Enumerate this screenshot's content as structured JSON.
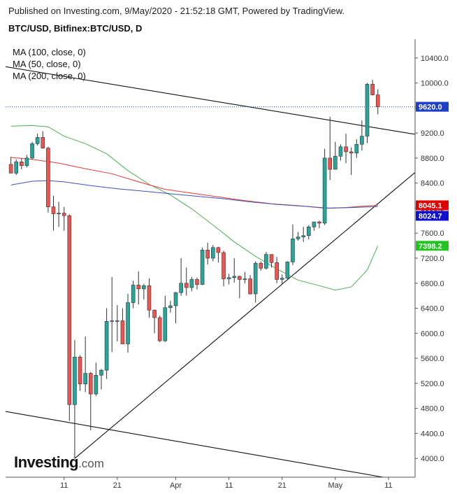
{
  "header": {
    "published": "Published on Investing.com, 9/May/2020 - 21:52:18 GMT, Powered by TradingView.",
    "symbol": "BTC/USD, Bitfinex:BTC/USD, D"
  },
  "legend": {
    "items": [
      "MA (100, close, 0)",
      "MA (50, close, 0)",
      "MA (200, close, 0)"
    ]
  },
  "logo": {
    "main": "Investing",
    "suffix": ".com"
  },
  "colors": {
    "up": "#26a69a",
    "down": "#ef5350",
    "ma50": "#4caf50",
    "ma100": "#e53935",
    "ma200": "#3f51b5",
    "current": "#1e40c8",
    "ma50_tag": "#22c322",
    "ma100_tag": "#e00000",
    "ma200_tag": "#1010d0"
  },
  "chart_data": {
    "type": "candlestick",
    "y_ticks": [
      "10400.0",
      "10000.0",
      "9600.0",
      "9200.0",
      "8800.0",
      "8400.0",
      "8000.0",
      "7600.0",
      "7200.0",
      "6800.0",
      "6400.0",
      "6000.0",
      "5600.0",
      "5200.0",
      "4800.0",
      "4400.0",
      "4000.0"
    ],
    "ylim": [
      3700,
      10700
    ],
    "x_ticks": [
      {
        "label": "11",
        "date": "2020-03-11"
      },
      {
        "label": "21",
        "date": "2020-03-21"
      },
      {
        "label": "Apr",
        "date": "2020-04-01"
      },
      {
        "label": "11",
        "date": "2020-04-11"
      },
      {
        "label": "21",
        "date": "2020-04-21"
      },
      {
        "label": "May",
        "date": "2020-05-01"
      },
      {
        "label": "11",
        "date": "2020-05-11"
      }
    ],
    "xlim": [
      "2020-02-29",
      "2020-05-16"
    ],
    "candles": [
      {
        "date": "2020-03-01",
        "open": 8700,
        "high": 8820,
        "low": 8610,
        "close": 8560
      },
      {
        "date": "2020-03-02",
        "open": 8560,
        "high": 8780,
        "low": 8530,
        "close": 8740
      },
      {
        "date": "2020-03-03",
        "open": 8740,
        "high": 8800,
        "low": 8620,
        "close": 8680
      },
      {
        "date": "2020-03-04",
        "open": 8680,
        "high": 8850,
        "low": 8650,
        "close": 8800
      },
      {
        "date": "2020-03-05",
        "open": 8800,
        "high": 9060,
        "low": 8780,
        "close": 9030
      },
      {
        "date": "2020-03-06",
        "open": 9030,
        "high": 9190,
        "low": 9000,
        "close": 9130
      },
      {
        "date": "2020-03-07",
        "open": 9130,
        "high": 9230,
        "low": 8950,
        "close": 8960
      },
      {
        "date": "2020-03-08",
        "open": 8960,
        "high": 8980,
        "low": 7930,
        "close": 8020
      },
      {
        "date": "2020-03-09",
        "open": 8020,
        "high": 8200,
        "low": 7640,
        "close": 7910
      },
      {
        "date": "2020-03-10",
        "open": 7910,
        "high": 8100,
        "low": 7700,
        "close": 7920
      },
      {
        "date": "2020-03-11",
        "open": 7920,
        "high": 8020,
        "low": 7640,
        "close": 7880
      },
      {
        "date": "2020-03-12",
        "open": 7880,
        "high": 7900,
        "low": 4600,
        "close": 4860
      },
      {
        "date": "2020-03-13",
        "open": 4860,
        "high": 5890,
        "low": 4000,
        "close": 5620
      },
      {
        "date": "2020-03-14",
        "open": 5620,
        "high": 5650,
        "low": 5080,
        "close": 5190
      },
      {
        "date": "2020-03-15",
        "open": 5190,
        "high": 5950,
        "low": 5060,
        "close": 5360
      },
      {
        "date": "2020-03-16",
        "open": 5360,
        "high": 5380,
        "low": 4450,
        "close": 5030
      },
      {
        "date": "2020-03-17",
        "open": 5030,
        "high": 5530,
        "low": 5000,
        "close": 5330
      },
      {
        "date": "2020-03-18",
        "open": 5330,
        "high": 5430,
        "low": 5100,
        "close": 5410
      },
      {
        "date": "2020-03-19",
        "open": 5410,
        "high": 6400,
        "low": 5270,
        "close": 6190
      },
      {
        "date": "2020-03-20",
        "open": 6190,
        "high": 6900,
        "low": 5700,
        "close": 6200
      },
      {
        "date": "2020-03-21",
        "open": 6200,
        "high": 6450,
        "low": 5870,
        "close": 6200
      },
      {
        "date": "2020-03-22",
        "open": 6200,
        "high": 6400,
        "low": 5840,
        "close": 5830
      },
      {
        "date": "2020-03-23",
        "open": 5830,
        "high": 6630,
        "low": 5690,
        "close": 6490
      },
      {
        "date": "2020-03-24",
        "open": 6490,
        "high": 6840,
        "low": 6400,
        "close": 6770
      },
      {
        "date": "2020-03-25",
        "open": 6770,
        "high": 6990,
        "low": 6460,
        "close": 6710
      },
      {
        "date": "2020-03-26",
        "open": 6710,
        "high": 6790,
        "low": 6540,
        "close": 6760
      },
      {
        "date": "2020-03-27",
        "open": 6760,
        "high": 6880,
        "low": 6250,
        "close": 6370
      },
      {
        "date": "2020-03-28",
        "open": 6370,
        "high": 6380,
        "low": 6000,
        "close": 6250
      },
      {
        "date": "2020-03-29",
        "open": 6250,
        "high": 6280,
        "low": 5860,
        "close": 5880
      },
      {
        "date": "2020-03-30",
        "open": 5880,
        "high": 6600,
        "low": 5860,
        "close": 6410
      },
      {
        "date": "2020-03-31",
        "open": 6410,
        "high": 6520,
        "low": 6330,
        "close": 6440
      },
      {
        "date": "2020-04-01",
        "open": 6440,
        "high": 6660,
        "low": 6160,
        "close": 6650
      },
      {
        "date": "2020-04-02",
        "open": 6650,
        "high": 7200,
        "low": 6600,
        "close": 6800
      },
      {
        "date": "2020-04-03",
        "open": 6800,
        "high": 7050,
        "low": 6600,
        "close": 6730
      },
      {
        "date": "2020-04-04",
        "open": 6730,
        "high": 6900,
        "low": 6670,
        "close": 6860
      },
      {
        "date": "2020-04-05",
        "open": 6860,
        "high": 6890,
        "low": 6700,
        "close": 6780
      },
      {
        "date": "2020-04-06",
        "open": 6780,
        "high": 7370,
        "low": 6770,
        "close": 7330
      },
      {
        "date": "2020-04-07",
        "open": 7330,
        "high": 7450,
        "low": 7100,
        "close": 7200
      },
      {
        "date": "2020-04-08",
        "open": 7200,
        "high": 7410,
        "low": 7150,
        "close": 7370
      },
      {
        "date": "2020-04-09",
        "open": 7370,
        "high": 7380,
        "low": 7130,
        "close": 7290
      },
      {
        "date": "2020-04-10",
        "open": 7290,
        "high": 7320,
        "low": 6750,
        "close": 6870
      },
      {
        "date": "2020-04-11",
        "open": 6870,
        "high": 6950,
        "low": 6780,
        "close": 6890
      },
      {
        "date": "2020-04-12",
        "open": 6890,
        "high": 7200,
        "low": 6810,
        "close": 6910
      },
      {
        "date": "2020-04-13",
        "open": 6910,
        "high": 6920,
        "low": 6560,
        "close": 6860
      },
      {
        "date": "2020-04-14",
        "open": 6860,
        "high": 6980,
        "low": 6800,
        "close": 6870
      },
      {
        "date": "2020-04-15",
        "open": 6870,
        "high": 6930,
        "low": 6620,
        "close": 6630
      },
      {
        "date": "2020-04-16",
        "open": 6630,
        "high": 7150,
        "low": 6490,
        "close": 7120
      },
      {
        "date": "2020-04-17",
        "open": 7120,
        "high": 7150,
        "low": 7000,
        "close": 7040
      },
      {
        "date": "2020-04-18",
        "open": 7040,
        "high": 7300,
        "low": 7020,
        "close": 7260
      },
      {
        "date": "2020-04-19",
        "open": 7260,
        "high": 7260,
        "low": 7050,
        "close": 7130
      },
      {
        "date": "2020-04-20",
        "open": 7130,
        "high": 7220,
        "low": 6800,
        "close": 6860
      },
      {
        "date": "2020-04-21",
        "open": 6860,
        "high": 6940,
        "low": 6780,
        "close": 6880
      },
      {
        "date": "2020-04-22",
        "open": 6880,
        "high": 7150,
        "low": 6870,
        "close": 7140
      },
      {
        "date": "2020-04-23",
        "open": 7140,
        "high": 7740,
        "low": 7090,
        "close": 7510
      },
      {
        "date": "2020-04-24",
        "open": 7510,
        "high": 7620,
        "low": 7480,
        "close": 7540
      },
      {
        "date": "2020-04-25",
        "open": 7540,
        "high": 7700,
        "low": 7460,
        "close": 7560
      },
      {
        "date": "2020-04-26",
        "open": 7560,
        "high": 7730,
        "low": 7500,
        "close": 7700
      },
      {
        "date": "2020-04-27",
        "open": 7700,
        "high": 7780,
        "low": 7640,
        "close": 7780
      },
      {
        "date": "2020-04-28",
        "open": 7780,
        "high": 7800,
        "low": 7680,
        "close": 7760
      },
      {
        "date": "2020-04-29",
        "open": 7760,
        "high": 8950,
        "low": 7730,
        "close": 8800
      },
      {
        "date": "2020-04-30",
        "open": 8800,
        "high": 9460,
        "low": 8450,
        "close": 8620
      },
      {
        "date": "2020-05-01",
        "open": 8620,
        "high": 9060,
        "low": 8620,
        "close": 8830
      },
      {
        "date": "2020-05-02",
        "open": 8830,
        "high": 9020,
        "low": 8760,
        "close": 8980
      },
      {
        "date": "2020-05-03",
        "open": 8980,
        "high": 9190,
        "low": 8720,
        "close": 8900
      },
      {
        "date": "2020-05-04",
        "open": 8900,
        "high": 8970,
        "low": 8530,
        "close": 8880
      },
      {
        "date": "2020-05-05",
        "open": 8880,
        "high": 9100,
        "low": 8800,
        "close": 9020
      },
      {
        "date": "2020-05-06",
        "open": 9020,
        "high": 9400,
        "low": 8920,
        "close": 9150
      },
      {
        "date": "2020-05-07",
        "open": 9150,
        "high": 10000,
        "low": 9040,
        "close": 9980
      },
      {
        "date": "2020-05-08",
        "open": 9980,
        "high": 10050,
        "low": 9800,
        "close": 9810
      },
      {
        "date": "2020-05-09",
        "open": 9810,
        "high": 9900,
        "low": 9500,
        "close": 9620
      }
    ],
    "series": [
      {
        "name": "MA (50, close, 0)",
        "color_key": "ma50",
        "points": [
          [
            "2020-03-01",
            9310
          ],
          [
            "2020-03-05",
            9320
          ],
          [
            "2020-03-08",
            9300
          ],
          [
            "2020-03-11",
            9150
          ],
          [
            "2020-03-15",
            9030
          ],
          [
            "2020-03-19",
            8870
          ],
          [
            "2020-03-23",
            8600
          ],
          [
            "2020-03-27",
            8380
          ],
          [
            "2020-03-31",
            8210
          ],
          [
            "2020-04-04",
            7990
          ],
          [
            "2020-04-08",
            7730
          ],
          [
            "2020-04-12",
            7460
          ],
          [
            "2020-04-16",
            7230
          ],
          [
            "2020-04-20",
            7030
          ],
          [
            "2020-04-24",
            6850
          ],
          [
            "2020-04-28",
            6760
          ],
          [
            "2020-05-01",
            6690
          ],
          [
            "2020-05-04",
            6740
          ],
          [
            "2020-05-07",
            7010
          ],
          [
            "2020-05-09",
            7398.2
          ]
        ]
      },
      {
        "name": "MA (100, close, 0)",
        "color_key": "ma100",
        "points": [
          [
            "2020-03-01",
            8810
          ],
          [
            "2020-03-05",
            8780
          ],
          [
            "2020-03-10",
            8720
          ],
          [
            "2020-03-15",
            8630
          ],
          [
            "2020-03-20",
            8550
          ],
          [
            "2020-03-25",
            8420
          ],
          [
            "2020-03-30",
            8300
          ],
          [
            "2020-04-04",
            8240
          ],
          [
            "2020-04-09",
            8180
          ],
          [
            "2020-04-14",
            8120
          ],
          [
            "2020-04-19",
            8070
          ],
          [
            "2020-04-24",
            8040
          ],
          [
            "2020-04-29",
            8000
          ],
          [
            "2020-05-03",
            8010
          ],
          [
            "2020-05-06",
            8030
          ],
          [
            "2020-05-09",
            8045.1
          ]
        ]
      },
      {
        "name": "MA (200, close, 0)",
        "color_key": "ma200",
        "points": [
          [
            "2020-03-01",
            8370
          ],
          [
            "2020-03-05",
            8430
          ],
          [
            "2020-03-08",
            8440
          ],
          [
            "2020-03-11",
            8420
          ],
          [
            "2020-03-16",
            8360
          ],
          [
            "2020-03-21",
            8310
          ],
          [
            "2020-03-26",
            8270
          ],
          [
            "2020-03-31",
            8230
          ],
          [
            "2020-04-05",
            8190
          ],
          [
            "2020-04-10",
            8150
          ],
          [
            "2020-04-15",
            8100
          ],
          [
            "2020-04-20",
            8060
          ],
          [
            "2020-04-25",
            8030
          ],
          [
            "2020-04-30",
            8000
          ],
          [
            "2020-05-04",
            8010
          ],
          [
            "2020-05-09",
            8024.7
          ]
        ]
      }
    ],
    "trendlines": [
      {
        "from": [
          "2020-02-29",
          10260
        ],
        "to": [
          "2020-05-16",
          9180
        ]
      },
      {
        "from": [
          "2020-03-13",
          4000
        ],
        "to": [
          "2020-05-16",
          8570
        ]
      },
      {
        "from": [
          "2020-02-29",
          4750
        ],
        "to": [
          "2020-05-10",
          3700
        ]
      }
    ],
    "current_price": {
      "label": "9620.0",
      "value": 9620
    },
    "price_tags": [
      {
        "label": "9620.0",
        "value": 9620,
        "color_key": "current"
      },
      {
        "label": "8045.1",
        "value": 8045.1,
        "color_key": "ma100_tag"
      },
      {
        "label": "8024.7",
        "value": 8024.7,
        "color_key": "ma200_tag"
      },
      {
        "label": "7398.2",
        "value": 7398.2,
        "color_key": "ma50_tag"
      }
    ]
  }
}
